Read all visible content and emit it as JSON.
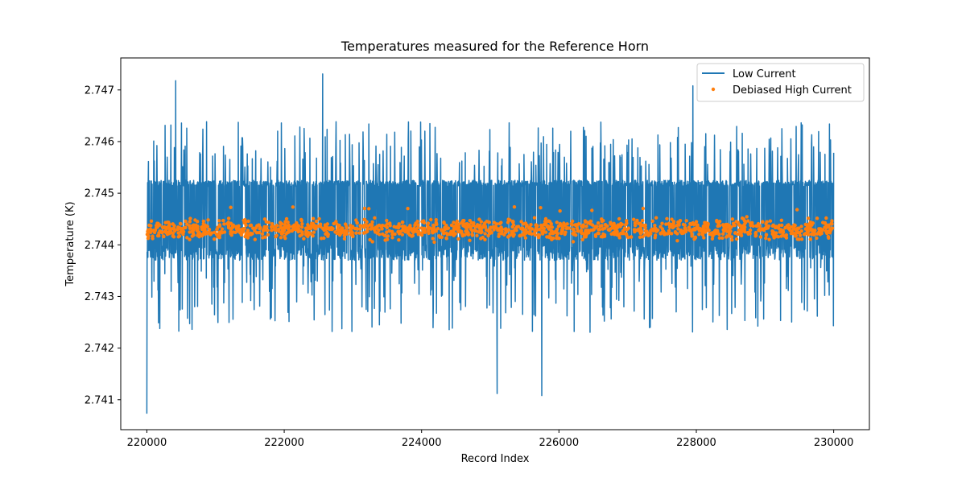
{
  "chart_data": {
    "type": "line",
    "title": "Temperatures measured for the Reference Horn",
    "xlabel": "Record Index",
    "ylabel": "Temperature (K)",
    "xlim": [
      219620,
      230520
    ],
    "ylim": [
      2.74042,
      2.74762
    ],
    "xticks": [
      220000,
      222000,
      224000,
      226000,
      228000,
      230000
    ],
    "yticks": [
      2.741,
      2.742,
      2.743,
      2.744,
      2.745,
      2.746,
      2.747
    ],
    "xtick_labels": [
      "220000",
      "222000",
      "224000",
      "226000",
      "228000",
      "230000"
    ],
    "ytick_labels": [
      "2.741",
      "2.742",
      "2.743",
      "2.744",
      "2.745",
      "2.746",
      "2.747"
    ],
    "grid": false,
    "legend_position": "top-right",
    "series": [
      {
        "name": "Low Current",
        "kind": "line",
        "color": "#1f77b4",
        "x_start": 220000,
        "x_end": 230000,
        "typical_range": [
          2.7437,
          2.74525
        ],
        "overall_min": 2.74073,
        "overall_max": 2.74731,
        "notable_points": [
          {
            "x": 220000,
            "y": 2.74073
          },
          {
            "x": 220420,
            "y": 2.74718
          },
          {
            "x": 222560,
            "y": 2.74731
          },
          {
            "x": 225100,
            "y": 2.74112
          },
          {
            "x": 225750,
            "y": 2.74108
          },
          {
            "x": 227950,
            "y": 2.74708
          }
        ]
      },
      {
        "name": "Debiased High Current",
        "kind": "scatter",
        "color": "#ff7f0e",
        "x_start": 220000,
        "x_end": 230000,
        "center": 2.7443,
        "typical_range": [
          2.7441,
          2.7445
        ],
        "overall_min": 2.7439,
        "overall_max": 2.74475
      }
    ]
  }
}
